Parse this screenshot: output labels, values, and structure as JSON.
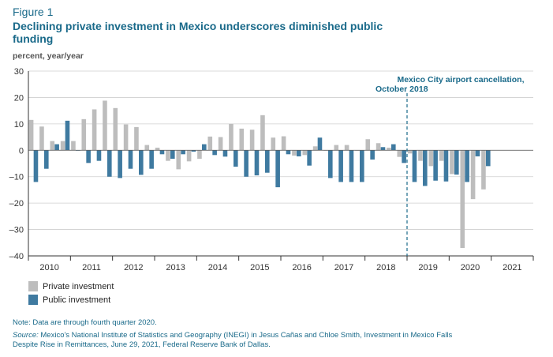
{
  "figure_label": "Figure 1",
  "title": "Declining private investment in Mexico underscores diminished public funding",
  "units": "percent, year/year",
  "note": "Note: Data are through fourth quarter 2020.",
  "source_label": "Source:",
  "source_text": "Mexico's National Institute of Statistics and Geography (INEGI) in Jesus Cañas and Chloe Smith, Investment in Mexico Falls Despite Rise in Remittances, June 29, 2021, Federal Reserve Bank of Dallas.",
  "legend": {
    "private": "Private investment",
    "public": "Public investment"
  },
  "colors": {
    "private": "#bdbdbd",
    "public": "#3f7aa0",
    "accent": "#1a6a8a"
  },
  "chart_data": {
    "type": "bar",
    "annotation": {
      "text_line1": "Mexico City airport cancellation,",
      "text_line2": "October 2018",
      "at_quarter": "2018Q4"
    },
    "ylim": [
      -40,
      30
    ],
    "yticks": [
      30,
      20,
      10,
      0,
      -10,
      -20,
      -30,
      -40
    ],
    "ytick_labels": [
      "30",
      "20",
      "10",
      "0",
      "–10",
      "–20",
      "–30",
      "–40"
    ],
    "x_labels": [
      "2010",
      "2011",
      "2012",
      "2013",
      "2014",
      "2015",
      "2016",
      "2017",
      "2018",
      "2019",
      "2020",
      "2021"
    ],
    "categories": [
      "2010Q1",
      "2010Q2",
      "2010Q3",
      "2010Q4",
      "2011Q1",
      "2011Q2",
      "2011Q3",
      "2011Q4",
      "2012Q1",
      "2012Q2",
      "2012Q3",
      "2012Q4",
      "2013Q1",
      "2013Q2",
      "2013Q3",
      "2013Q4",
      "2014Q1",
      "2014Q2",
      "2014Q3",
      "2014Q4",
      "2015Q1",
      "2015Q2",
      "2015Q3",
      "2015Q4",
      "2016Q1",
      "2016Q2",
      "2016Q3",
      "2016Q4",
      "2017Q1",
      "2017Q2",
      "2017Q3",
      "2017Q4",
      "2018Q1",
      "2018Q2",
      "2018Q3",
      "2018Q4",
      "2019Q1",
      "2019Q2",
      "2019Q3",
      "2019Q4",
      "2020Q1",
      "2020Q2",
      "2020Q3",
      "2020Q4"
    ],
    "series": [
      {
        "name": "Private investment",
        "values": [
          11.5,
          9,
          3.5,
          3.5,
          3.5,
          11.8,
          15.5,
          18.8,
          16,
          9.8,
          8.8,
          2,
          1,
          -4,
          -7.2,
          -4.2,
          -3.2,
          5.2,
          5,
          10,
          8.2,
          7.8,
          13.3,
          4.8,
          5.3,
          -2,
          -1.8,
          1.5,
          0,
          2,
          2,
          0,
          4.2,
          2.7,
          1,
          -2.5,
          -1.2,
          -4,
          -6,
          -4,
          -9,
          -37,
          -18.5,
          -14.8
        ]
      },
      {
        "name": "Public investment",
        "values": [
          -12,
          -7,
          2.3,
          11.2,
          0,
          -4.8,
          -4,
          -10,
          -10.5,
          -7,
          -9.3,
          -7,
          -1.5,
          -3.2,
          -1.5,
          -0.5,
          2.3,
          -1.8,
          -2.4,
          -6.2,
          -10,
          -9.5,
          -8.5,
          -14,
          -1.5,
          -2.3,
          -5.8,
          4.8,
          -10.5,
          -12,
          -12,
          -12,
          -3.5,
          1.2,
          2.3,
          -4.8,
          -12,
          -13.5,
          -11.5,
          -11.8,
          -9.2,
          -12,
          -2.3,
          -6
        ]
      }
    ]
  }
}
